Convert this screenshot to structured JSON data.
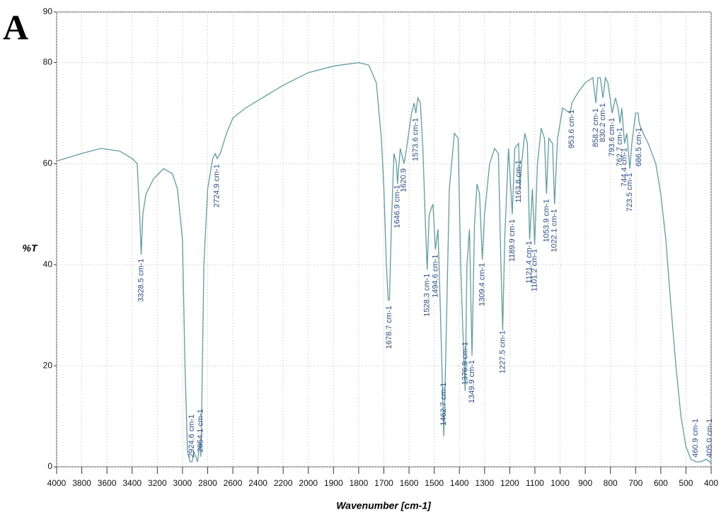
{
  "chart_data": {
    "type": "line",
    "panel_label": "A",
    "xlabel": "Wavenumber [cm-1]",
    "ylabel": "%T",
    "color": "#5f9ea0",
    "label_color": "#2b4f8f",
    "grid": true,
    "xlim": [
      4000,
      400
    ],
    "xticks": [
      4000,
      3800,
      3600,
      3400,
      3200,
      3000,
      2800,
      2600,
      2400,
      2200,
      2000,
      1900,
      1800,
      1700,
      1600,
      1500,
      1400,
      1300,
      1200,
      1100,
      1000,
      900,
      800,
      700,
      600,
      500,
      400
    ],
    "ylim": [
      0,
      90
    ],
    "yticks": [
      0,
      20,
      40,
      60,
      80,
      90
    ],
    "x": [
      4000,
      3800,
      3650,
      3500,
      3400,
      3360,
      3340,
      3328,
      3315,
      3290,
      3230,
      3150,
      3080,
      3040,
      3000,
      2980,
      2960,
      2940,
      2924,
      2910,
      2880,
      2860,
      2854,
      2845,
      2830,
      2800,
      2760,
      2740,
      2725,
      2700,
      2650,
      2600,
      2500,
      2400,
      2200,
      2000,
      1900,
      1800,
      1760,
      1730,
      1710,
      1700,
      1690,
      1683,
      1678,
      1670,
      1660,
      1650,
      1646,
      1635,
      1620,
      1610,
      1590,
      1580,
      1573,
      1565,
      1555,
      1545,
      1535,
      1528,
      1520,
      1505,
      1495,
      1485,
      1475,
      1462,
      1455,
      1440,
      1420,
      1405,
      1395,
      1385,
      1377,
      1370,
      1360,
      1350,
      1340,
      1330,
      1320,
      1309,
      1300,
      1280,
      1260,
      1245,
      1235,
      1228,
      1220,
      1205,
      1190,
      1180,
      1165,
      1160,
      1153,
      1140,
      1130,
      1121,
      1110,
      1101,
      1090,
      1075,
      1062,
      1054,
      1045,
      1030,
      1022,
      1010,
      990,
      960,
      953,
      930,
      900,
      870,
      858,
      850,
      840,
      830,
      820,
      810,
      793,
      780,
      770,
      762,
      755,
      744,
      735,
      723,
      715,
      700,
      690,
      686,
      670,
      650,
      620,
      600,
      580,
      560,
      540,
      520,
      500,
      480,
      461,
      440,
      420,
      405,
      400
    ],
    "values": [
      60.5,
      62,
      63,
      62.5,
      61,
      60,
      50,
      42,
      50,
      54,
      57,
      59,
      58,
      55,
      45,
      20,
      3,
      1,
      1,
      3,
      1,
      5,
      2,
      15,
      40,
      55,
      61,
      62,
      61,
      62,
      66,
      69,
      71,
      72.5,
      75.5,
      78,
      79.3,
      80,
      79.5,
      76,
      65,
      55,
      40,
      33,
      33,
      48,
      62,
      60,
      56,
      63,
      60,
      63,
      70,
      72,
      70,
      73,
      72,
      63,
      48,
      39,
      50,
      52,
      43,
      47,
      30,
      6,
      20,
      55,
      66,
      65,
      40,
      25,
      15,
      40,
      47,
      22,
      48,
      56,
      54,
      41,
      50,
      60,
      63,
      62,
      40,
      27,
      45,
      63,
      50,
      63,
      64,
      55,
      60,
      66,
      64,
      45,
      55,
      44,
      60,
      67,
      65,
      54,
      65,
      64,
      52,
      65,
      71,
      70,
      72,
      74,
      76,
      77,
      72,
      77,
      77,
      73,
      77,
      76,
      70,
      73,
      71,
      68,
      71,
      64,
      66,
      59,
      64,
      70,
      70,
      68,
      66,
      64,
      60,
      54,
      45,
      32,
      20,
      10,
      4,
      1.5,
      1,
      1,
      1.5,
      1,
      0.5
    ],
    "peaks": [
      {
        "x": 3328.5,
        "label": "3328.5 cm-1"
      },
      {
        "x": 2924.6,
        "label": "2924.6 cm-1"
      },
      {
        "x": 2854.1,
        "label": "2854.1 cm-1"
      },
      {
        "x": 2724.9,
        "label": "2724.9 cm-1"
      },
      {
        "x": 1678.7,
        "label": "1678.7 cm-1"
      },
      {
        "x": 1646.9,
        "label": "1646.9 cm-1"
      },
      {
        "x": 1620.9,
        "label": "1620.9"
      },
      {
        "x": 1573.6,
        "label": "1573.6 cm-1"
      },
      {
        "x": 1528.3,
        "label": "1528.3 cm-1"
      },
      {
        "x": 1494.6,
        "label": "1494.6 cm-1"
      },
      {
        "x": 1462.7,
        "label": "1462.7 cm-1"
      },
      {
        "x": 1376.9,
        "label": "1376.9 cm-1"
      },
      {
        "x": 1349.9,
        "label": "1349.9 cm-1"
      },
      {
        "x": 1309.4,
        "label": "1309.4 cm-1"
      },
      {
        "x": 1227.5,
        "label": "1227.5 cm-1"
      },
      {
        "x": 1189.9,
        "label": "1189.9 cm-1"
      },
      {
        "x": 1163.8,
        "label": "1163.8 cm-1"
      },
      {
        "x": 1121.4,
        "label": "1121.4 cm-1"
      },
      {
        "x": 1101.2,
        "label": "1101.2 cm-1"
      },
      {
        "x": 1053.9,
        "label": "1053.9 cm-1"
      },
      {
        "x": 1022.1,
        "label": "1022.1 cm-1"
      },
      {
        "x": 953.6,
        "label": "953.6 cm-1"
      },
      {
        "x": 858.2,
        "label": "858.2 cm-1"
      },
      {
        "x": 830.2,
        "label": "830.2 cm-1"
      },
      {
        "x": 793.6,
        "label": "793.6 cm-1"
      },
      {
        "x": 762.7,
        "label": "762.7 cm-1"
      },
      {
        "x": 744.4,
        "label": "744.4 cm-1"
      },
      {
        "x": 723.5,
        "label": "723.5 cm-1"
      },
      {
        "x": 686.5,
        "label": "686.5 cm-1"
      },
      {
        "x": 460.9,
        "label": "460.9 cm-1"
      },
      {
        "x": 405.0,
        "label": "405.0 cm-1"
      }
    ]
  }
}
